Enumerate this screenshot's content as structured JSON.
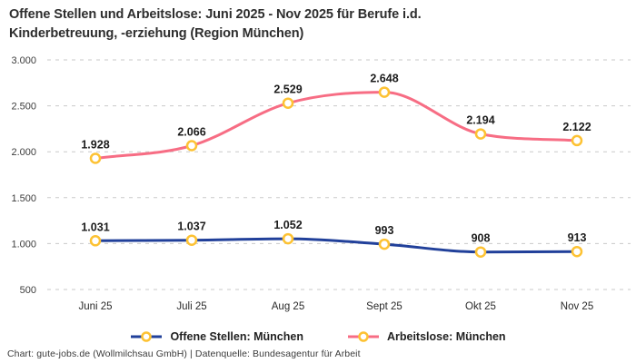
{
  "title": {
    "line1": "Offene Stellen und Arbeitslose: Juni 2025 - Nov 2025 für Berufe i.d.",
    "line2": "Kinderbetreuung, -erziehung (Region München)"
  },
  "footer": "Chart: gute-jobs.de (Wollmilchsau GmbH) | Datenquelle: Bundesagentur für Arbeit",
  "colors": {
    "navy": "#21409a",
    "pink": "#f76d84",
    "gold": "#fdc233",
    "grid": "#c9c9c9",
    "tick_text": "#3c3c3c",
    "axis_text": "#2a2a2a",
    "value_label": "#1c1c1c",
    "background": "#ffffff"
  },
  "chart_data": {
    "type": "line",
    "title": "Offene Stellen und Arbeitslose: Juni 2025 - Nov 2025 für Berufe i.d. Kinderbetreuung, -erziehung (Region München)",
    "categories": [
      "Juni 25",
      "Juli 25",
      "Aug 25",
      "Sept 25",
      "Okt 25",
      "Nov 25"
    ],
    "series": [
      {
        "name": "Offene Stellen: München",
        "color_key": "navy",
        "values": [
          1031,
          1037,
          1052,
          993,
          908,
          913
        ],
        "labels": [
          "1.031",
          "1.037",
          "1.052",
          "993",
          "908",
          "913"
        ]
      },
      {
        "name": "Arbeitslose: München",
        "color_key": "pink",
        "values": [
          1928,
          2066,
          2529,
          2648,
          2194,
          2122
        ],
        "labels": [
          "1.928",
          "2.066",
          "2.529",
          "2.648",
          "2.194",
          "2.122"
        ]
      }
    ],
    "y_ticks": [
      {
        "value": 3000,
        "label": "3.000"
      },
      {
        "value": 2500,
        "label": "2.500"
      },
      {
        "value": 2000,
        "label": "2.000"
      },
      {
        "value": 1500,
        "label": "1.500"
      },
      {
        "value": 1000,
        "label": "1.000"
      },
      {
        "value": 500,
        "label": "500"
      }
    ],
    "ylim": [
      500,
      3000
    ],
    "xlabel": "",
    "ylabel": "",
    "grid": "horizontal-dashed",
    "legend_position": "bottom-center",
    "marker": {
      "shape": "circle",
      "stroke": "gold",
      "fill": "white"
    },
    "line_style": "smooth"
  }
}
